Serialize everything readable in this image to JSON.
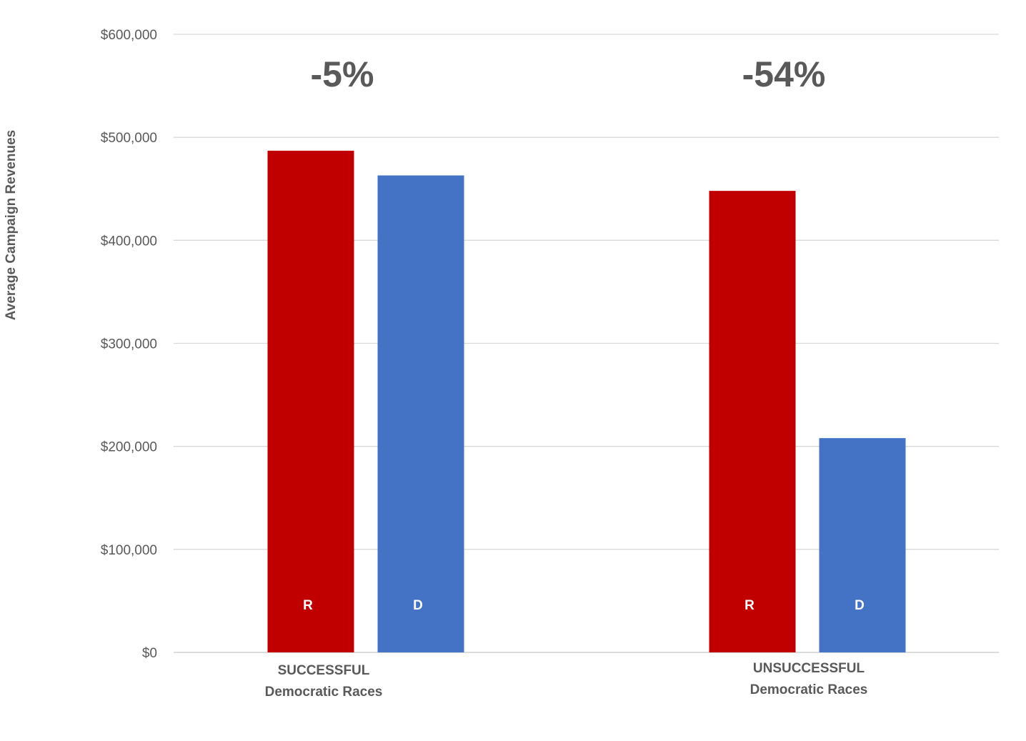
{
  "chart_data": {
    "type": "bar",
    "title": "",
    "xlabel": "",
    "ylabel": "Average Campaign Revenues",
    "ylim": [
      0,
      600000
    ],
    "yticks": [
      0,
      100000,
      200000,
      300000,
      400000,
      500000,
      600000
    ],
    "ytick_labels": [
      "$0",
      "$100,000",
      "$200,000",
      "$300,000",
      "$400,000",
      "$500,000",
      "$600,000"
    ],
    "grid": true,
    "legend": "none",
    "categories": [
      [
        "SUCCESSFUL",
        "Democratic Races"
      ],
      [
        "UNSUCCESSFUL",
        "Democratic Races"
      ]
    ],
    "series": [
      {
        "name": "R",
        "color": "#C00000",
        "values": [
          487000,
          448000
        ]
      },
      {
        "name": "D",
        "color": "#4472C4",
        "values": [
          463000,
          208000
        ]
      }
    ],
    "group_annotations": [
      "-5%",
      "-54%"
    ]
  }
}
